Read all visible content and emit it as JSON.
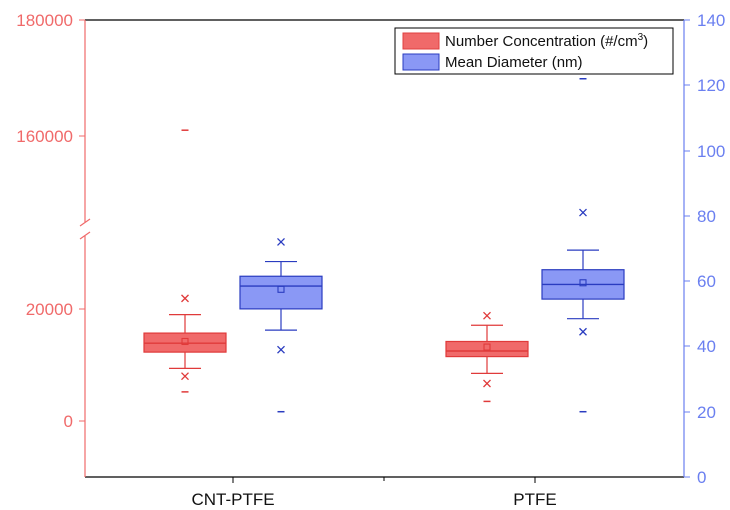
{
  "chart_data": {
    "type": "box",
    "categories": [
      "CNT-PTFE",
      "PTFE"
    ],
    "y_left": {
      "ticks": [
        "180000",
        "160000",
        "20000",
        "0"
      ],
      "broken": true,
      "segments": [
        {
          "range": [
            -10000,
            30000
          ]
        },
        {
          "range": [
            145000,
            180000
          ]
        }
      ],
      "color": "#f06a6a"
    },
    "y_right": {
      "ticks": [
        "140",
        "120",
        "100",
        "80",
        "60",
        "40",
        "20",
        "0"
      ],
      "range": [
        0,
        140
      ],
      "color": "#6a7ff0"
    },
    "legend": {
      "position": "top-right",
      "items": [
        {
          "label_main": "Number Concentration (#/cm",
          "label_sup": "3",
          "label_end": ")",
          "color": "#f06a6a",
          "border": "#e04040"
        },
        {
          "label": "Mean Diameter (nm)",
          "color": "#8a98f5",
          "border": "#2a3cc0"
        }
      ]
    },
    "series": [
      {
        "name": "Number Concentration",
        "axis": "left",
        "fill": "#f06a6a",
        "stroke": "#e03a3a",
        "boxes": [
          {
            "category": "CNT-PTFE",
            "whisker_low": 9400,
            "q1": 12300,
            "median": 13900,
            "q3": 15700,
            "whisker_high": 19000,
            "mean": 14200,
            "outliers_x": [
              8000,
              21900
            ],
            "extremes": [
              5200,
              161000
            ]
          },
          {
            "category": "PTFE",
            "whisker_low": 8500,
            "q1": 11500,
            "median": 12500,
            "q3": 14200,
            "whisker_high": 17100,
            "mean": 13200,
            "outliers_x": [
              6700,
              18800
            ],
            "extremes": [
              3500
            ]
          }
        ]
      },
      {
        "name": "Mean Diameter",
        "axis": "right",
        "fill": "#8a98f5",
        "stroke": "#2a3cc0",
        "boxes": [
          {
            "category": "CNT-PTFE",
            "whisker_low": 45,
            "q1": 51.5,
            "median": 58.5,
            "q3": 61.5,
            "whisker_high": 66,
            "mean": 57.5,
            "outliers_x": [
              39,
              72
            ],
            "extremes": [
              20
            ]
          },
          {
            "category": "PTFE",
            "whisker_low": 48.5,
            "q1": 54.5,
            "median": 59,
            "q3": 63.5,
            "whisker_high": 69.5,
            "mean": 59.5,
            "outliers_x": [
              44.5,
              81
            ],
            "extremes": [
              20,
              122
            ]
          }
        ]
      }
    ]
  }
}
